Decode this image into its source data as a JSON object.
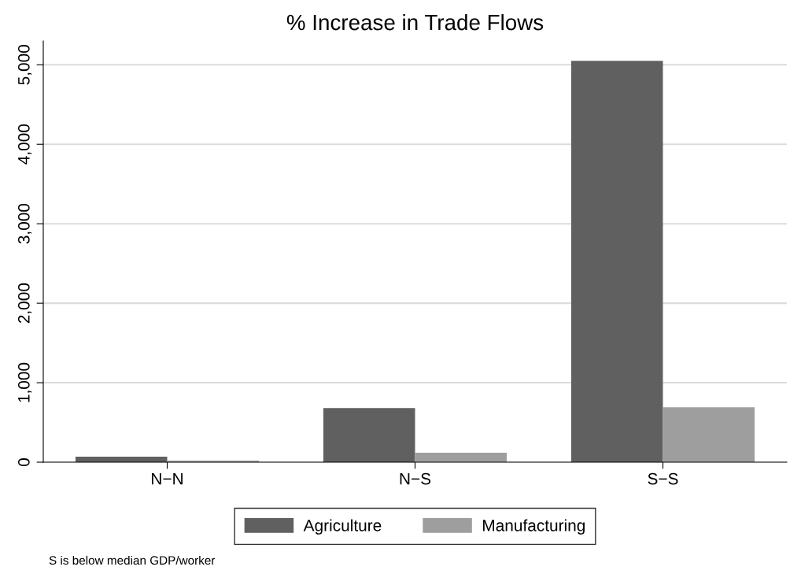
{
  "chart_data": {
    "type": "bar",
    "title": "% Increase in Trade Flows",
    "categories": [
      "N−N",
      "N−S",
      "S−S"
    ],
    "series": [
      {
        "name": "Agriculture",
        "color": "#606060",
        "values": [
          70,
          680,
          5050
        ]
      },
      {
        "name": "Manufacturing",
        "color": "#9e9e9e",
        "values": [
          20,
          120,
          690
        ]
      }
    ],
    "ylim": [
      0,
      5300
    ],
    "yticks": [
      0,
      {
        "value": 1000,
        "label": "1,000"
      },
      {
        "value": 2000,
        "label": "2,000"
      },
      {
        "value": 3000,
        "label": "3,000"
      },
      {
        "value": 4000,
        "label": "4,000"
      },
      {
        "value": 5000,
        "label": "5,000"
      }
    ],
    "grid": "y",
    "legend": "bottom",
    "annotations": [
      "S is below median GDP/worker"
    ]
  }
}
